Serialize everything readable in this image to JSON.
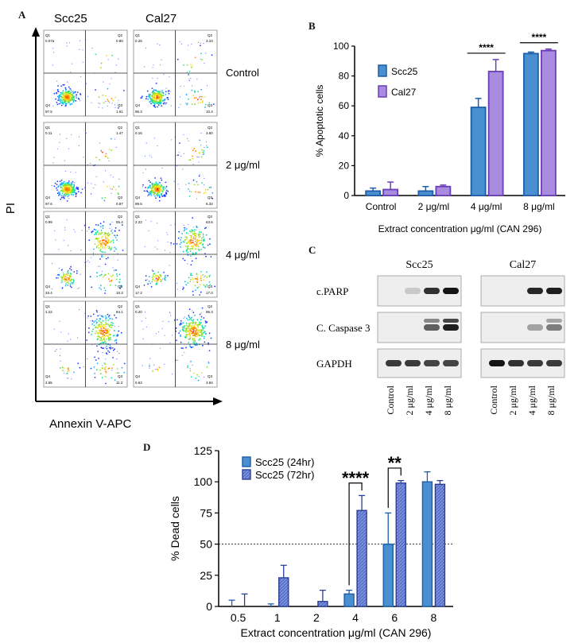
{
  "panel_a": {
    "letter": "A",
    "col_headers": [
      "Scc25",
      "Cal27"
    ],
    "row_labels": [
      "Control",
      "2 μg/ml",
      "4 μg/ml",
      "8 μg/ml"
    ],
    "x_label": "Annexin V-APC",
    "y_label": "PI",
    "quadrants": [
      [
        {
          "q1": "0.07a",
          "q2": "0.80",
          "q3": "1.61",
          "q4": "97.5"
        },
        {
          "q1": "0.25",
          "q2": "3.10",
          "q3": "10.4",
          "q4": "86.3"
        }
      ],
      [
        {
          "q1": "0.11",
          "q2": "1.47",
          "q3": "0.87",
          "q4": "97.6"
        },
        {
          "q1": "0.16",
          "q2": "3.60",
          "q3": "6.32",
          "q4": "89.5"
        }
      ],
      [
        {
          "q1": "0.99",
          "q2": "55.4",
          "q3": "10.3",
          "q4": "33.4"
        },
        {
          "q1": "2.22",
          "q2": "63.6",
          "q3": "17.0",
          "q4": "17.2"
        }
      ],
      [
        {
          "q1": "1.22",
          "q2": "84.1",
          "q3": "11.2",
          "q4": "3.55"
        },
        {
          "q1": "0.20",
          "q2": "95.3",
          "q3": "3.84",
          "q4": "0.63"
        }
      ]
    ]
  },
  "chart_data": [
    {
      "panel": "B",
      "type": "bar",
      "categories": [
        "Control",
        "2 μg/ml",
        "4 μg/ml",
        "8 μg/ml"
      ],
      "series": [
        {
          "name": "Scc25",
          "values": [
            3,
            3,
            59,
            95
          ],
          "errors": [
            2,
            3,
            6,
            1
          ],
          "color": "#4a8fd0"
        },
        {
          "name": "Cal27",
          "values": [
            4,
            6,
            83,
            97
          ],
          "errors": [
            5,
            1,
            8,
            1
          ],
          "color": "#a98be0"
        }
      ],
      "xlabel": "Extract concentration μg/ml (CAN 296)",
      "ylabel": "% Apoptotic cells",
      "ylim": [
        0,
        100
      ],
      "yticks": [
        0,
        20,
        40,
        60,
        80,
        100
      ],
      "significance": [
        "",
        "",
        "****",
        "****"
      ]
    },
    {
      "panel": "D",
      "type": "bar",
      "categories": [
        "0.5",
        "1",
        "2",
        "4",
        "6",
        "8"
      ],
      "series": [
        {
          "name": "Scc25 (24hr)",
          "values": [
            0,
            0,
            0,
            10,
            50,
            100
          ],
          "errors": [
            5,
            2,
            0,
            3,
            25,
            8
          ],
          "color": "#4a8fd0"
        },
        {
          "name": "Scc25 (72hr)",
          "values": [
            0,
            23,
            4,
            77,
            99,
            98
          ],
          "errors": [
            10,
            10,
            9,
            12,
            2,
            3
          ],
          "color": "#4a5fb5"
        }
      ],
      "xlabel": "Extract concentration μg/ml (CAN 296)",
      "ylabel": "% Dead cells",
      "ylim": [
        0,
        125
      ],
      "yticks": [
        0,
        25,
        50,
        75,
        100,
        125
      ],
      "reference_line": 50,
      "significance": [
        {
          "category": "4",
          "label": "****"
        },
        {
          "category": "6",
          "label": "**"
        }
      ]
    }
  ],
  "panel_b": {
    "letter": "B"
  },
  "panel_c": {
    "letter": "C",
    "group_labels": [
      "Scc25",
      "Cal27"
    ],
    "blot_labels": [
      "c.PARP",
      "C. Caspase 3",
      "GAPDH"
    ],
    "lane_labels": [
      "Control",
      "2 μg/ml",
      "4 μg/ml",
      "8 μg/ml"
    ],
    "intensities": {
      "c.PARP": [
        [
          0,
          0.05,
          0.85,
          1.0
        ],
        [
          0,
          0,
          0.9,
          0.95
        ]
      ],
      "C. Caspase 3": [
        [
          0,
          0,
          0.6,
          0.95
        ],
        [
          0,
          0,
          0.25,
          0.45
        ]
      ],
      "GAPDH": [
        [
          0.8,
          0.8,
          0.75,
          0.75
        ],
        [
          1.0,
          0.85,
          0.8,
          0.8
        ]
      ]
    }
  },
  "panel_d": {
    "letter": "D"
  }
}
